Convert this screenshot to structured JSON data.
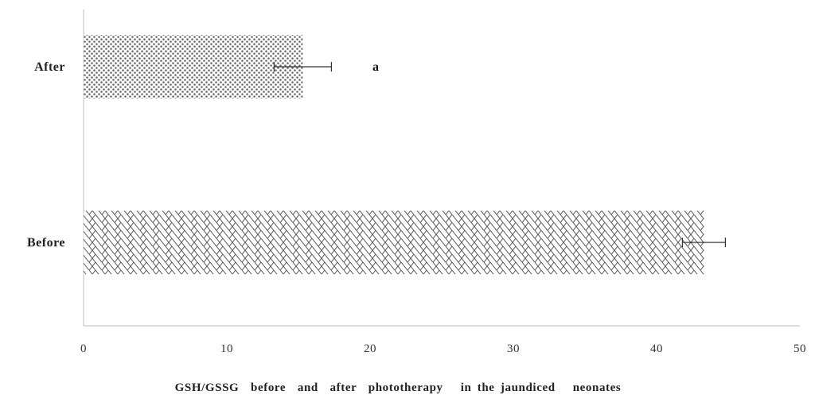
{
  "chart_data": {
    "type": "bar",
    "orientation": "horizontal",
    "categories": [
      "After",
      "Before"
    ],
    "values": [
      15.3,
      43.3
    ],
    "error": [
      2.0,
      1.5
    ],
    "annotations": [
      {
        "category": "After",
        "text": "a"
      }
    ],
    "xlabel": "GSH/GSSG  before  and  after  phototherapy   in the jaundiced   neonates",
    "xlim": [
      0,
      50
    ],
    "xticks": [
      0,
      10,
      20,
      30,
      40,
      50
    ],
    "grid": false,
    "bar_patterns": [
      "dots",
      "zigzag"
    ]
  }
}
